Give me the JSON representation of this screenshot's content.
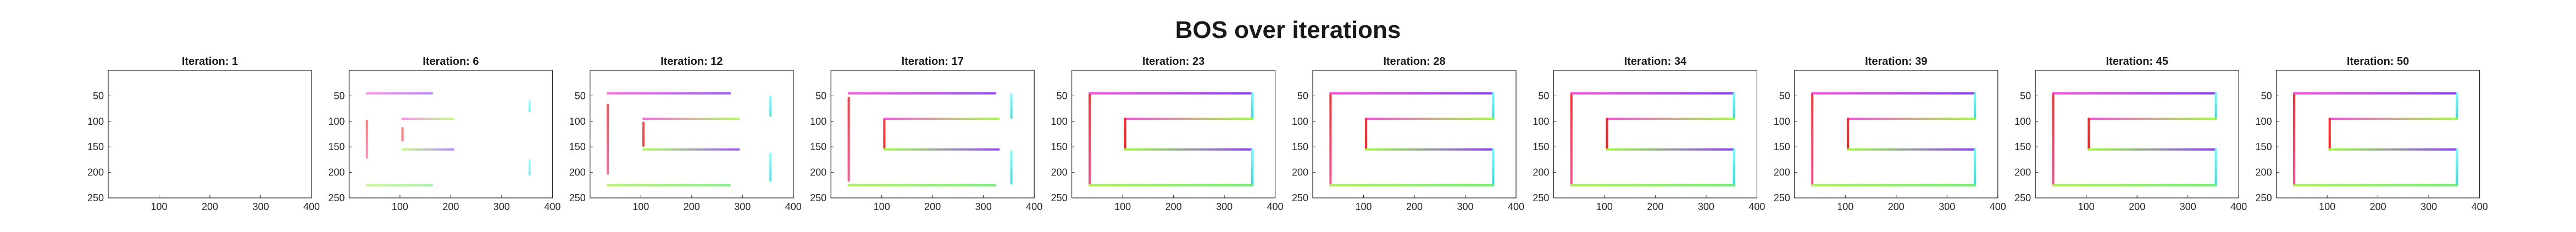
{
  "figure_title": "BOS over iterations",
  "chart_data": {
    "type": "small-multiples",
    "title": "BOS over iterations",
    "panel_title_prefix": "Iteration: ",
    "xlim": [
      0,
      400
    ],
    "ylim": [
      250,
      0
    ],
    "xticks": [
      100,
      200,
      300,
      400
    ],
    "yticks": [
      50,
      100,
      150,
      200,
      250
    ],
    "grid": false,
    "color_encoding": "hue-gradient",
    "shape": {
      "lines": [
        {
          "name": "left-vertical",
          "x": [
            35,
            35
          ],
          "y": [
            45,
            225
          ],
          "colors": [
            "#ff2222",
            "#ff4488"
          ]
        },
        {
          "name": "top-horizontal",
          "x": [
            35,
            355
          ],
          "y": [
            45,
            45
          ],
          "colors": [
            "#ff44dd",
            "#8833ff"
          ]
        },
        {
          "name": "top-right-vertical",
          "x": [
            355,
            355
          ],
          "y": [
            45,
            95
          ],
          "colors": [
            "#66ffff",
            "#22dddd"
          ]
        },
        {
          "name": "mid-upper-horizontal",
          "x": [
            105,
            355
          ],
          "y": [
            95,
            95
          ],
          "colors": [
            "#ff44dd",
            "#99ff33"
          ]
        },
        {
          "name": "mid-left-vertical",
          "x": [
            105,
            105
          ],
          "y": [
            95,
            155
          ],
          "colors": [
            "#ff2222",
            "#ff1111"
          ]
        },
        {
          "name": "mid-lower-horizontal",
          "x": [
            105,
            355
          ],
          "y": [
            155,
            155
          ],
          "colors": [
            "#99ff33",
            "#8833ff"
          ]
        },
        {
          "name": "bottom-right-vertical",
          "x": [
            355,
            355
          ],
          "y": [
            155,
            225
          ],
          "colors": [
            "#66ffff",
            "#22dddd"
          ]
        },
        {
          "name": "bottom-horizontal",
          "x": [
            35,
            355
          ],
          "y": [
            225,
            225
          ],
          "colors": [
            "#99ff33",
            "#55ff55"
          ]
        }
      ]
    },
    "panels": [
      {
        "iteration": "1",
        "completeness": 0.0
      },
      {
        "iteration": "6",
        "completeness": 0.4
      },
      {
        "iteration": "12",
        "completeness": 0.75
      },
      {
        "iteration": "17",
        "completeness": 0.9
      },
      {
        "iteration": "23",
        "completeness": 1.0
      },
      {
        "iteration": "28",
        "completeness": 1.0
      },
      {
        "iteration": "34",
        "completeness": 1.0
      },
      {
        "iteration": "39",
        "completeness": 1.0
      },
      {
        "iteration": "45",
        "completeness": 1.0
      },
      {
        "iteration": "50",
        "completeness": 1.0
      }
    ]
  }
}
